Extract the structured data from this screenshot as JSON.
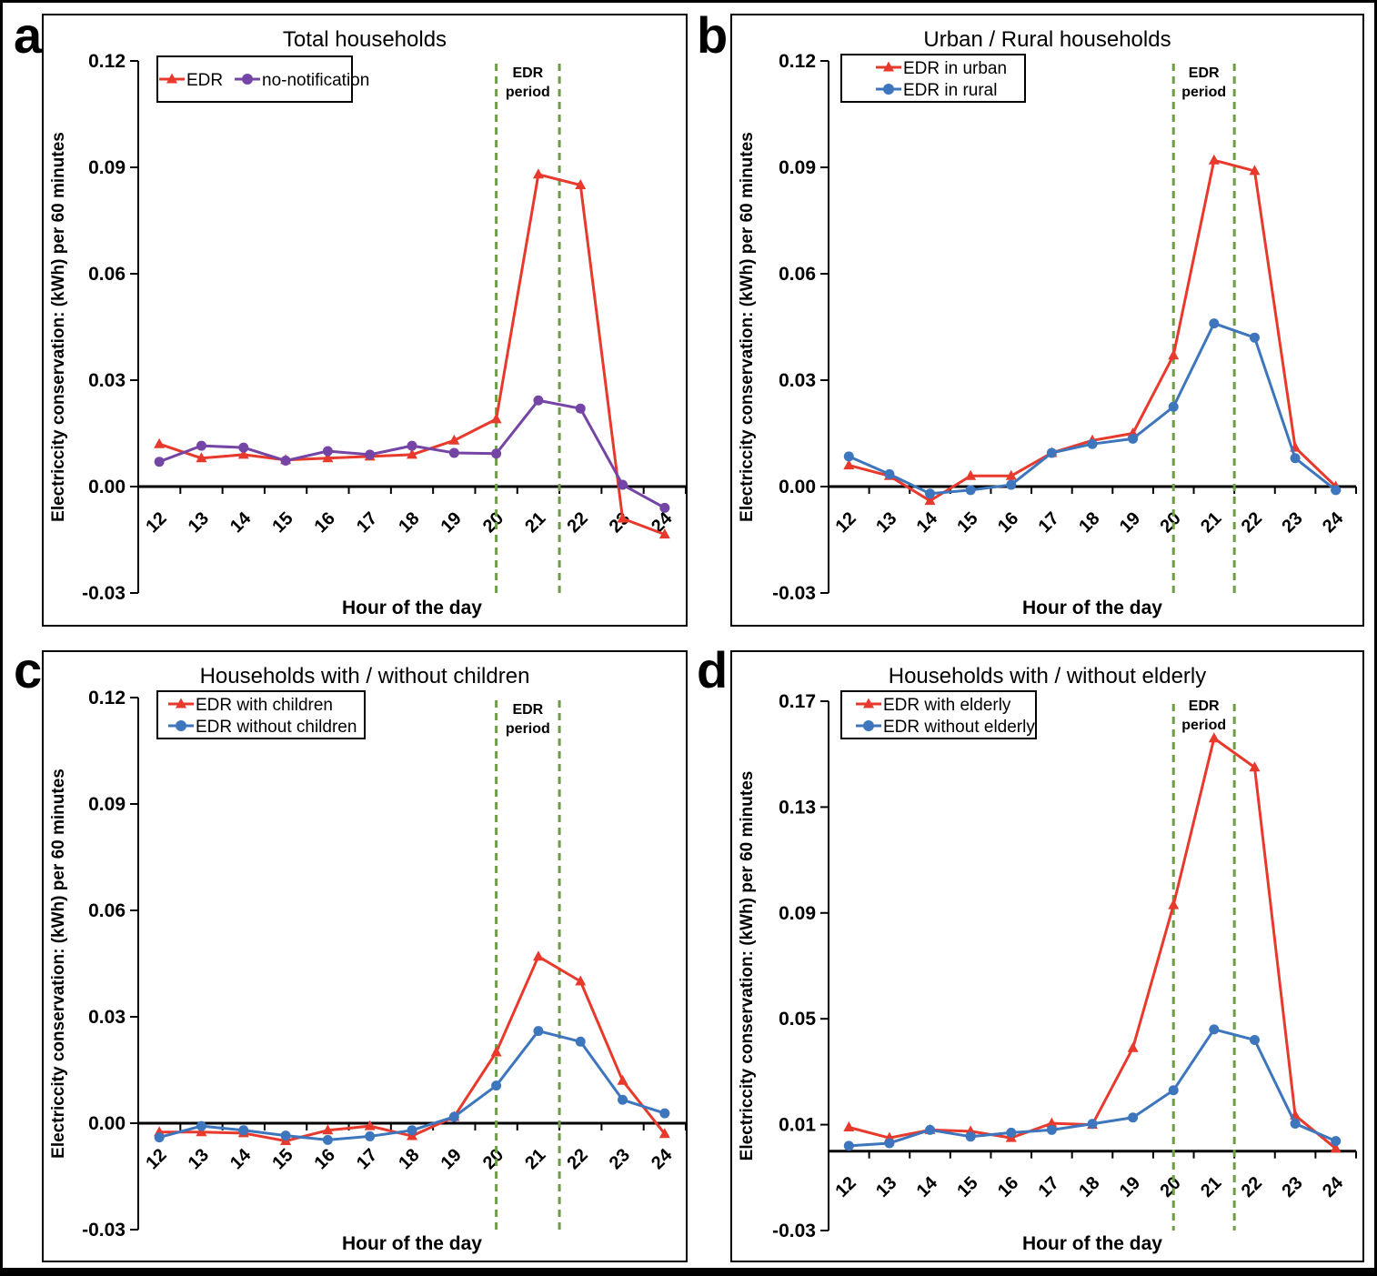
{
  "figure": {
    "background": "#ffffff",
    "border_color": "#000000"
  },
  "colors": {
    "edr_red": "#e8392d",
    "no_notification_purple": "#7445a5",
    "edr_blue": "#3d76bd",
    "dash_green": "#6d9d45",
    "axis_black": "#000000"
  },
  "chart_data": [
    {
      "type": "line",
      "panel_label": "a",
      "title": "Total households",
      "xlabel": "Hour of the day",
      "ylabel": "Electriccity conservation: (kWh) per 60 minutes",
      "categories": [
        "12",
        "13",
        "14",
        "15",
        "16",
        "17",
        "18",
        "19",
        "20",
        "21",
        "22",
        "23",
        "24"
      ],
      "y_tick_labels": [
        "0.12",
        "0.09",
        "0.06",
        "0.03",
        "0.00",
        "-0.03"
      ],
      "ylim": [
        -0.03,
        0.12
      ],
      "annotation_lines": [
        "EDR",
        "period"
      ],
      "edr_period_hours": [
        20,
        21.5
      ],
      "legend_position": "top-left",
      "grid": false,
      "series": [
        {
          "name": "EDR",
          "color": "#e8392d",
          "marker": "triangle",
          "values": [
            0.012,
            0.008,
            0.009,
            0.0075,
            0.008,
            0.0085,
            0.009,
            0.013,
            0.019,
            0.088,
            0.085,
            -0.009,
            -0.0135
          ]
        },
        {
          "name": "no-notification",
          "color": "#7445a5",
          "marker": "circle",
          "values": [
            0.007,
            0.0115,
            0.011,
            0.0073,
            0.01,
            0.009,
            0.0115,
            0.0095,
            0.0093,
            0.0243,
            0.022,
            0.0005,
            -0.006
          ]
        }
      ]
    },
    {
      "type": "line",
      "panel_label": "b",
      "title": "Urban / Rural households",
      "xlabel": "Hour of the day",
      "ylabel": "Electriccity conservation: (kWh) per 60 minutes",
      "categories": [
        "12",
        "13",
        "14",
        "15",
        "16",
        "17",
        "18",
        "19",
        "20",
        "21",
        "22",
        "23",
        "24"
      ],
      "y_tick_labels": [
        "0.12",
        "0.09",
        "0.06",
        "0.03",
        "0.00",
        "-0.03"
      ],
      "ylim": [
        -0.03,
        0.12
      ],
      "annotation_lines": [
        "EDR",
        "period"
      ],
      "edr_period_hours": [
        20,
        21.5
      ],
      "legend_position": "top-left",
      "grid": false,
      "series": [
        {
          "name": "EDR in urban",
          "color": "#e8392d",
          "marker": "triangle",
          "values": [
            0.006,
            0.003,
            -0.004,
            0.003,
            0.003,
            0.0095,
            0.013,
            0.015,
            0.037,
            0.092,
            0.089,
            0.011,
            0.0
          ]
        },
        {
          "name": "EDR in rural",
          "color": "#3d76bd",
          "marker": "circle",
          "values": [
            0.0085,
            0.0035,
            -0.002,
            -0.001,
            0.0005,
            0.0095,
            0.012,
            0.0135,
            0.0225,
            0.046,
            0.042,
            0.008,
            -0.001
          ]
        }
      ]
    },
    {
      "type": "line",
      "panel_label": "c",
      "title": "Households with / without children",
      "xlabel": "Hour of the day",
      "ylabel": "Electriccity conservation: (kWh) per 60 minutes",
      "categories": [
        "12",
        "13",
        "14",
        "15",
        "16",
        "17",
        "18",
        "19",
        "20",
        "21",
        "22",
        "23",
        "24"
      ],
      "y_tick_labels": [
        "0.12",
        "0.09",
        "0.06",
        "0.03",
        "0.00",
        "-0.03"
      ],
      "ylim": [
        -0.03,
        0.12
      ],
      "annotation_lines": [
        "EDR",
        "period"
      ],
      "edr_period_hours": [
        20,
        21.5
      ],
      "legend_position": "top-left",
      "grid": false,
      "series": [
        {
          "name": "EDR with children",
          "color": "#e8392d",
          "marker": "triangle",
          "values": [
            -0.0025,
            -0.0025,
            -0.0028,
            -0.005,
            -0.002,
            -0.0008,
            -0.0036,
            0.0018,
            0.02,
            0.047,
            0.04,
            0.012,
            -0.003
          ]
        },
        {
          "name": "EDR without children",
          "color": "#3d76bd",
          "marker": "circle",
          "values": [
            -0.004,
            -0.0008,
            -0.002,
            -0.0035,
            -0.0047,
            -0.0037,
            -0.002,
            0.0018,
            0.0106,
            0.026,
            0.023,
            0.0066,
            0.0028
          ]
        }
      ]
    },
    {
      "type": "line",
      "panel_label": "d",
      "title": "Households with / without elderly",
      "xlabel": "Hour of the day",
      "ylabel": "Electriccity conservation: (kWh) per 60 minutes",
      "categories": [
        "12",
        "13",
        "14",
        "15",
        "16",
        "17",
        "18",
        "19",
        "20",
        "21",
        "22",
        "23",
        "24"
      ],
      "y_tick_labels": [
        "0.17",
        "0.13",
        "0.09",
        "0.05",
        "0.01",
        "-0.03"
      ],
      "ylim": [
        -0.03,
        0.17
      ],
      "annotation_lines": [
        "EDR",
        "period"
      ],
      "edr_period_hours": [
        20,
        21.5
      ],
      "legend_position": "top-left",
      "grid": false,
      "series": [
        {
          "name": "EDR with elderly",
          "color": "#e8392d",
          "marker": "triangle",
          "values": [
            0.009,
            0.005,
            0.008,
            0.0075,
            0.005,
            0.0105,
            0.01,
            0.039,
            0.093,
            0.156,
            0.145,
            0.0135,
            0.001
          ]
        },
        {
          "name": "EDR without elderly",
          "color": "#3d76bd",
          "marker": "circle",
          "values": [
            0.002,
            0.003,
            0.008,
            0.0055,
            0.007,
            0.008,
            0.0103,
            0.0127,
            0.023,
            0.046,
            0.042,
            0.0104,
            0.0038
          ]
        }
      ]
    }
  ]
}
